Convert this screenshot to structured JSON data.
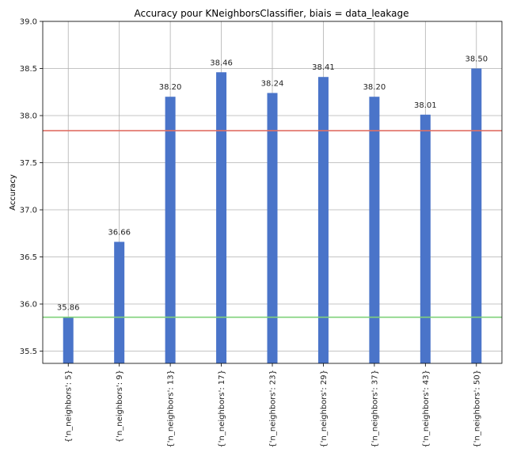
{
  "chart_data": {
    "type": "bar",
    "title": "Accuracy pour KNeighborsClassifier, biais = data_leakage",
    "xlabel": "",
    "ylabel": "Accuracy",
    "categories": [
      "{'n_neighbors': 5}",
      "{'n_neighbors': 9}",
      "{'n_neighbors': 13}",
      "{'n_neighbors': 17}",
      "{'n_neighbors': 23}",
      "{'n_neighbors': 29}",
      "{'n_neighbors': 37}",
      "{'n_neighbors': 43}",
      "{'n_neighbors': 50}"
    ],
    "values": [
      35.86,
      36.66,
      38.2,
      38.46,
      38.24,
      38.41,
      38.2,
      38.01,
      38.5
    ],
    "value_labels": [
      "35.86",
      "36.66",
      "38.20",
      "38.46",
      "38.24",
      "38.41",
      "38.20",
      "38.01",
      "38.50"
    ],
    "ylim": [
      35.37,
      39.0
    ],
    "yticks": [
      35.5,
      36.0,
      36.5,
      37.0,
      37.5,
      38.0,
      38.5,
      39.0
    ],
    "ytick_labels": [
      "35.5",
      "36.0",
      "36.5",
      "37.0",
      "37.5",
      "38.0",
      "38.5",
      "39.0"
    ],
    "grid": true,
    "reference_lines": [
      {
        "y": 37.84,
        "color": "#e06f64"
      },
      {
        "y": 35.86,
        "color": "#7fd17a"
      }
    ],
    "bar_color": "#4a74c9"
  }
}
